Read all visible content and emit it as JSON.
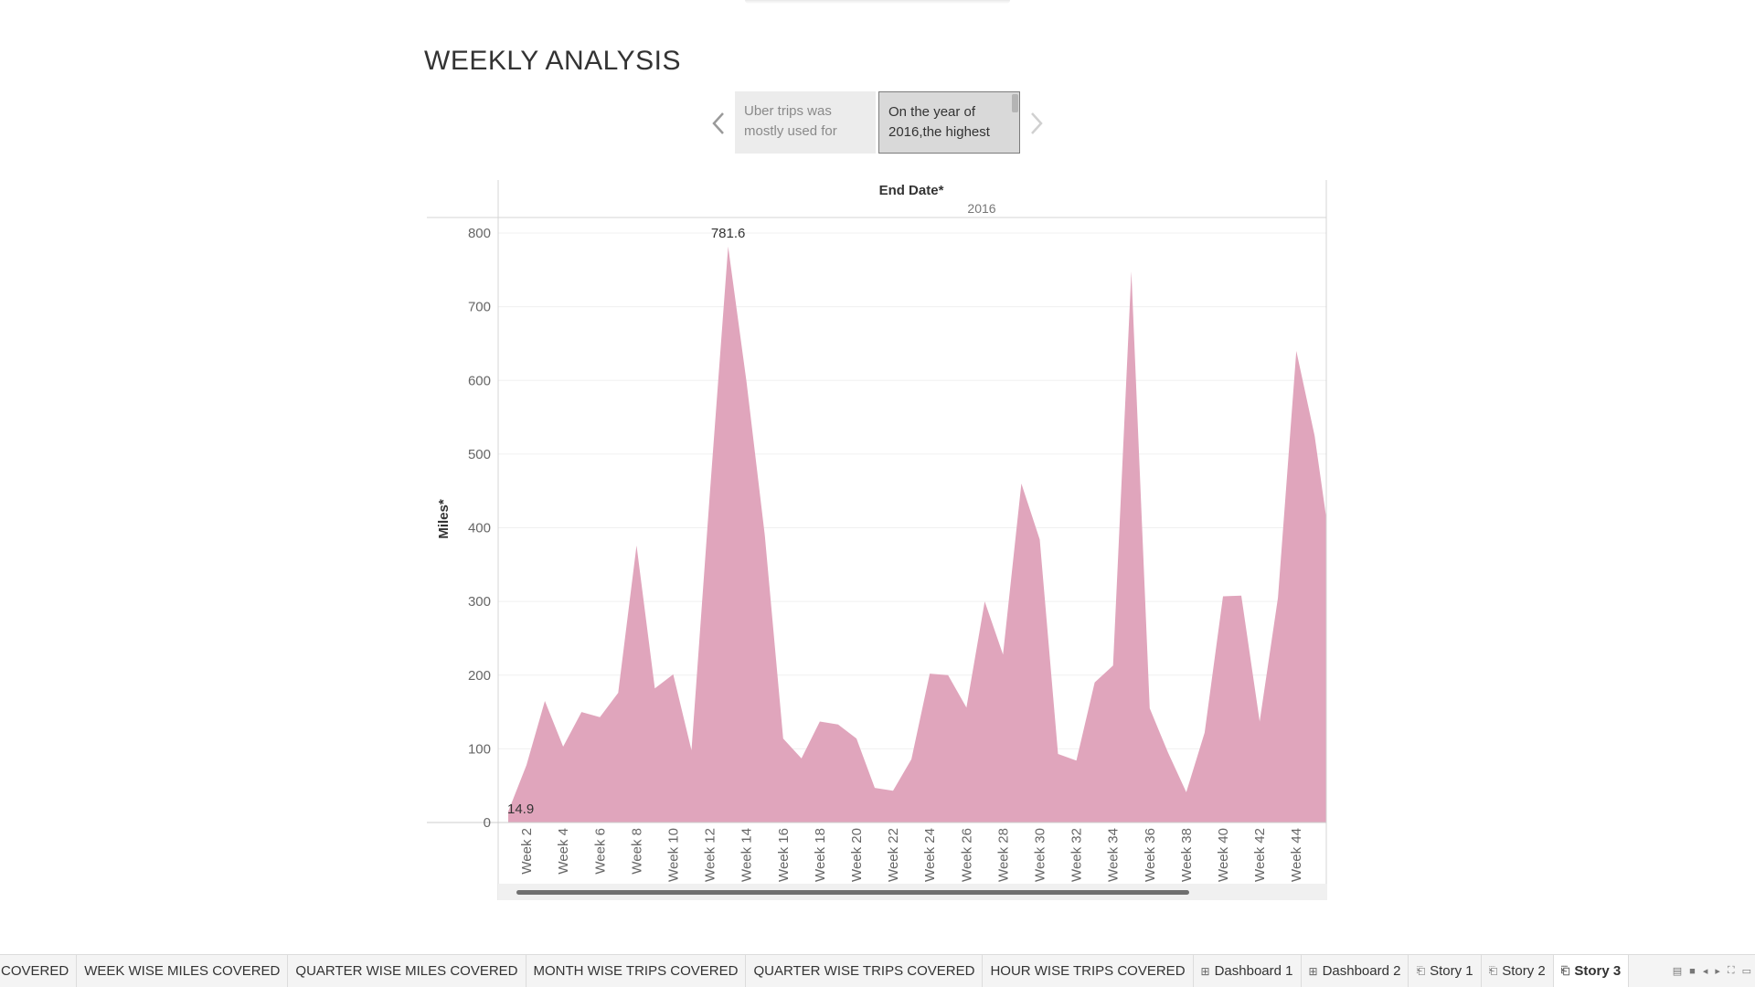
{
  "story": {
    "title": "WEEKLY ANALYSIS",
    "points": [
      {
        "text": "Uber trips was mostly  used for"
      },
      {
        "text": "On the year of 2016,the highest"
      }
    ],
    "prev_icon": "chevron-left-icon",
    "next_icon": "chevron-right-icon"
  },
  "chart_data": {
    "type": "area",
    "column_header": "End Date*",
    "year_label": "2016",
    "ylabel": "Miles*",
    "ylim": [
      0,
      800
    ],
    "yticks": [
      0,
      100,
      200,
      300,
      400,
      500,
      600,
      700,
      800
    ],
    "color": "#e0a5bc",
    "x": [
      1,
      2,
      3,
      4,
      5,
      6,
      7,
      8,
      9,
      10,
      11,
      12,
      13,
      14,
      15,
      16,
      17,
      18,
      19,
      20,
      21,
      22,
      23,
      24,
      25,
      26,
      27,
      28,
      29,
      30,
      31,
      32,
      33,
      34,
      35,
      36,
      37,
      38,
      39,
      40,
      41,
      42,
      43,
      44,
      45,
      46
    ],
    "values": [
      14.9,
      78,
      165,
      103,
      150,
      143,
      176,
      376,
      182,
      201,
      98,
      445,
      781.6,
      598,
      390,
      114,
      87,
      137,
      133,
      114,
      47,
      43,
      86,
      202,
      200,
      156,
      300,
      228,
      460,
      384,
      93,
      84,
      190,
      213,
      748,
      155,
      95,
      41,
      122,
      307,
      308,
      137,
      305,
      640,
      525,
      350
    ],
    "tick_labels": [
      "Week 2",
      "Week 4",
      "Week 6",
      "Week 8",
      "Week 10",
      "Week 12",
      "Week 14",
      "Week 16",
      "Week 18",
      "Week 20",
      "Week 22",
      "Week 24",
      "Week 26",
      "Week 28",
      "Week 30",
      "Week 32",
      "Week 34",
      "Week 36",
      "Week 38",
      "Week 40",
      "Week 42",
      "Week 44"
    ],
    "tick_weeks": [
      2,
      4,
      6,
      8,
      10,
      12,
      14,
      16,
      18,
      20,
      22,
      24,
      26,
      28,
      30,
      32,
      34,
      36,
      38,
      40,
      42,
      44
    ],
    "annotations": [
      {
        "week": 13,
        "label": "781.6"
      },
      {
        "week": 1,
        "label": "14.9"
      }
    ]
  },
  "tabs": [
    {
      "label": "COVERED",
      "icon": ""
    },
    {
      "label": "WEEK WISE MILES COVERED",
      "icon": ""
    },
    {
      "label": "QUARTER WISE MILES COVERED",
      "icon": ""
    },
    {
      "label": "MONTH WISE TRIPS COVERED",
      "icon": ""
    },
    {
      "label": "QUARTER WISE TRIPS COVERED",
      "icon": ""
    },
    {
      "label": "HOUR WISE TRIPS COVERED",
      "icon": ""
    },
    {
      "label": "Dashboard 1",
      "icon": "dashboard-icon"
    },
    {
      "label": "Dashboard 2",
      "icon": "dashboard-icon"
    },
    {
      "label": "Story 1",
      "icon": "story-icon"
    },
    {
      "label": "Story 2",
      "icon": "story-icon"
    },
    {
      "label": "Story 3",
      "icon": "story-icon"
    }
  ],
  "active_tab": "Story 3",
  "tab_controls": [
    "show-sheet-sorter-icon",
    "show-filmstrip-icon",
    "scroll-left-icon",
    "scroll-right-icon",
    "fullscreen-icon",
    "presentation-icon"
  ]
}
